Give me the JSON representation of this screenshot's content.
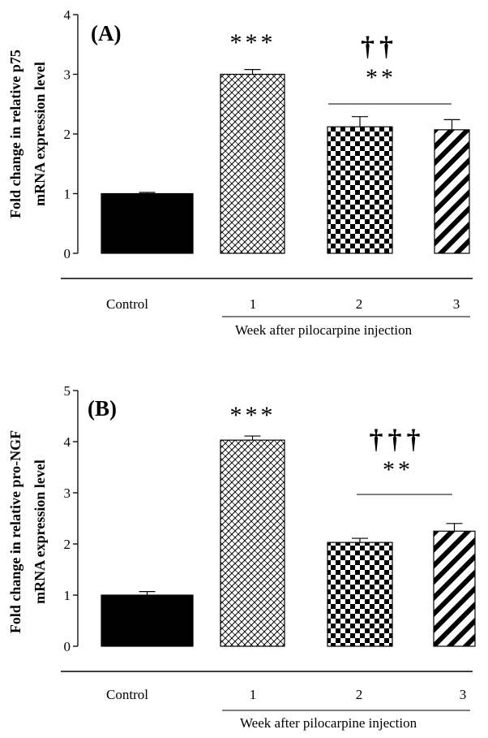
{
  "chart_data": [
    {
      "type": "bar",
      "panel_label": "(A)",
      "ylabel_line1": "Fold change in relative p75",
      "ylabel_line2": "mRNA expression level",
      "xlabel": "Week after pilocarpine injection",
      "categories": [
        "Control",
        "1",
        "2",
        "3"
      ],
      "values": [
        1.0,
        3.0,
        2.12,
        2.07
      ],
      "errors": [
        0.02,
        0.08,
        0.17,
        0.17
      ],
      "patterns": [
        "solid",
        "brick",
        "checker",
        "diagonal"
      ],
      "ylim": [
        0,
        4
      ],
      "yticks": [
        "0",
        "1",
        "2",
        "3",
        "4"
      ],
      "significance": [
        {
          "bar": "1",
          "text": "***"
        },
        {
          "bar": "2-3",
          "text": "**",
          "dagger": "††"
        }
      ],
      "grid": false,
      "legend": "none"
    },
    {
      "type": "bar",
      "panel_label": "(B)",
      "ylabel_line1": "Fold change in relative pro-NGF",
      "ylabel_line2": "mRNA expression level",
      "xlabel": "Week after pilocarpine injection",
      "categories": [
        "Control",
        "1",
        "2",
        "3"
      ],
      "values": [
        1.0,
        4.03,
        2.03,
        2.25
      ],
      "errors": [
        0.07,
        0.08,
        0.08,
        0.15
      ],
      "patterns": [
        "solid",
        "brick",
        "checker",
        "diagonal"
      ],
      "ylim": [
        0,
        5
      ],
      "yticks": [
        "0",
        "1",
        "2",
        "3",
        "4",
        "5"
      ],
      "significance": [
        {
          "bar": "1",
          "text": "***"
        },
        {
          "bar": "2-3",
          "text": "**",
          "dagger": "†††"
        }
      ],
      "grid": false,
      "legend": "none"
    }
  ]
}
